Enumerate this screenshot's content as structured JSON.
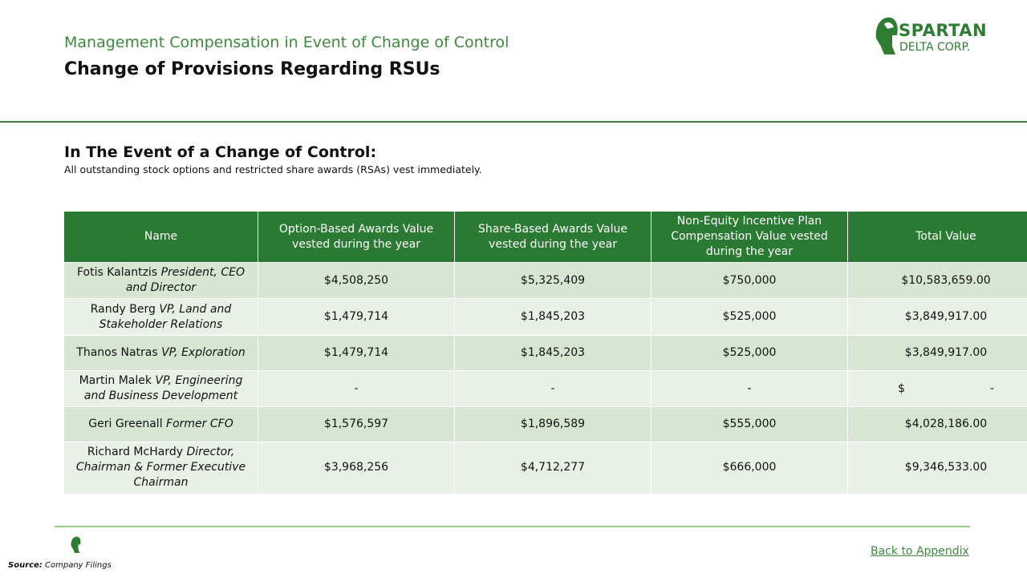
{
  "header": {
    "subtitle": "Management Compensation in Event of Change of Control",
    "title": "Change of Provisions Regarding RSUs",
    "logo": {
      "line1": "SPARTAN",
      "line2": "DELTA CORP."
    }
  },
  "section": {
    "heading": "In The Event of a Change of Control:",
    "body": "All outstanding stock options and restricted share awards (RSAs) vest immediately."
  },
  "table": {
    "headers": [
      "Name",
      "Option-Based Awards Value vested during the year",
      "Share-Based Awards Value vested during the year",
      "Non-Equity Incentive Plan Compensation Value vested during the year",
      "Total Value"
    ],
    "rows": [
      {
        "name": "Fotis Kalantzis",
        "role": "President, CEO and Director",
        "cells": [
          "$4,508,250",
          "$5,325,409",
          "$750,000",
          "$10,583,659.00"
        ]
      },
      {
        "name": "Randy Berg",
        "role": "VP, Land and Stakeholder Relations",
        "cells": [
          "$1,479,714",
          "$1,845,203",
          "$525,000",
          "$3,849,917.00"
        ]
      },
      {
        "name": "Thanos Natras",
        "role": "VP, Exploration",
        "cells": [
          "$1,479,714",
          "$1,845,203",
          "$525,000",
          "$3,849,917.00"
        ]
      },
      {
        "name": "Martin Malek",
        "role": "VP, Engineering and Business Development",
        "cells": [
          "-",
          "-",
          "-",
          {
            "symbol": "$",
            "value": "-"
          }
        ]
      },
      {
        "name": "Geri Greenall",
        "role": "Former CFO",
        "cells": [
          "$1,576,597",
          "$1,896,589",
          "$555,000",
          "$4,028,186.00"
        ]
      },
      {
        "name": "Richard McHardy",
        "role": "Director, Chairman & Former Executive Chairman",
        "cells": [
          "$3,968,256",
          "$4,712,277",
          "$666,000",
          "$9,346,533.00"
        ]
      }
    ]
  },
  "footer": {
    "source_label": "Source:",
    "source": "Company Filings",
    "link": "Back to Appendix"
  }
}
